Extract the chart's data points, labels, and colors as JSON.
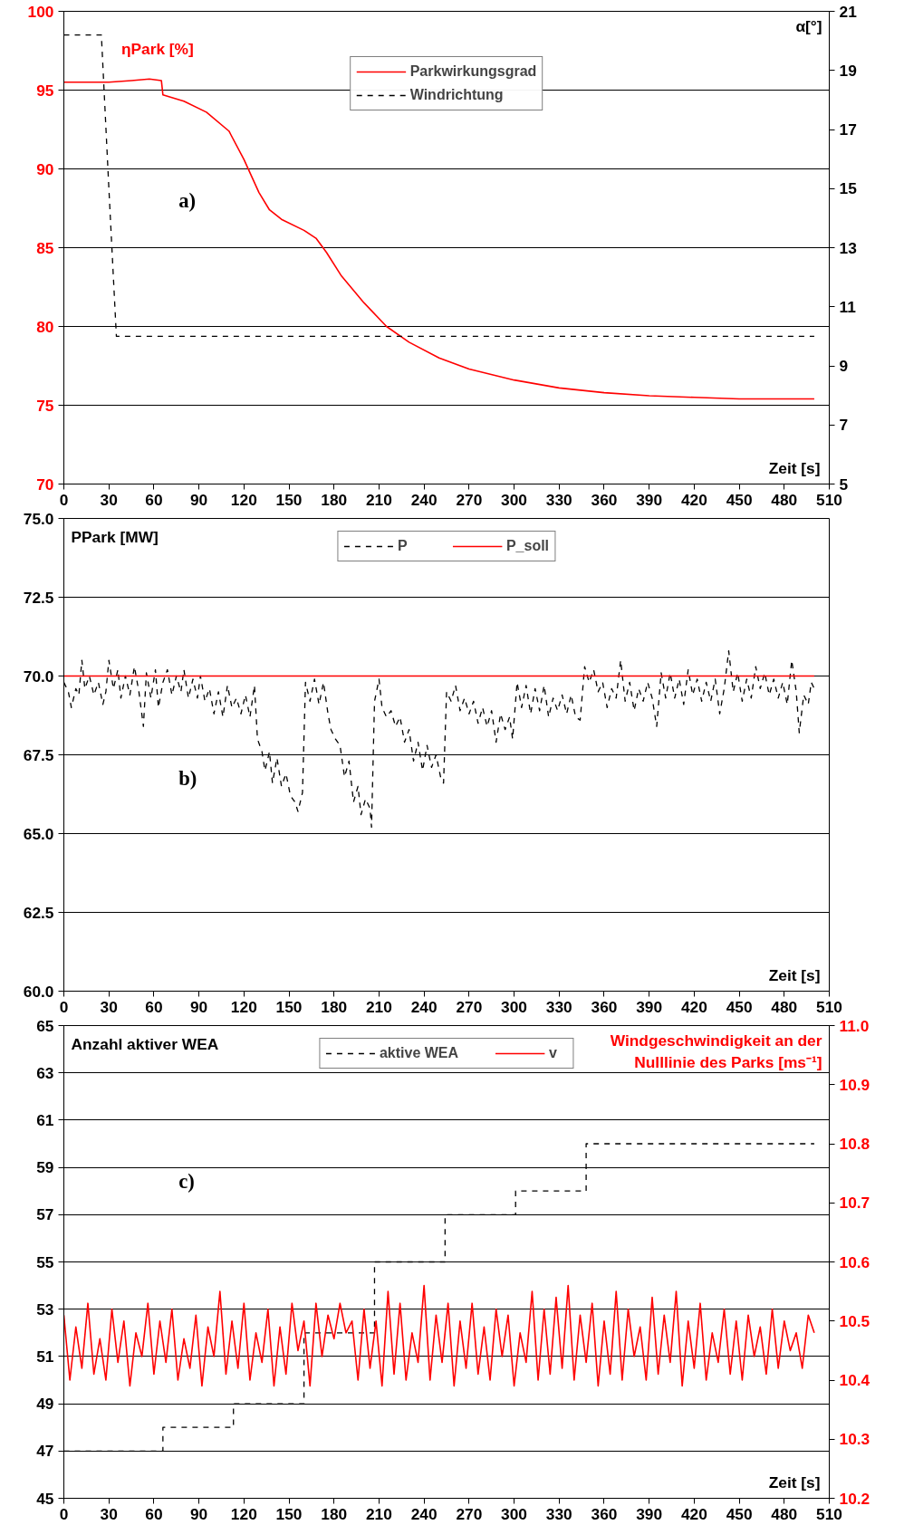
{
  "chart_data": [
    {
      "type": "line",
      "ylabel": "ηPark [%]",
      "y2label": "α[°]",
      "xlabel": "Zeit [s]",
      "annotations": [
        "a)"
      ],
      "xlim": [
        0,
        510
      ],
      "xticks": [
        0,
        30,
        60,
        90,
        120,
        150,
        180,
        210,
        240,
        270,
        300,
        330,
        360,
        390,
        420,
        450,
        480,
        510
      ],
      "ylim": [
        70,
        100
      ],
      "yticks": [
        70,
        75,
        80,
        85,
        90,
        95,
        100
      ],
      "y2lim": [
        5,
        21
      ],
      "y2ticks": [
        5,
        7,
        9,
        11,
        13,
        15,
        17,
        19,
        21
      ],
      "grid": "y",
      "legend": "top",
      "marker": "none",
      "series": [
        {
          "name": "Parkwirkungsgrad",
          "color": "#ff0000",
          "line_style": "solid",
          "x": [
            0,
            30,
            45,
            57,
            65,
            66,
            80,
            95,
            110,
            120,
            130,
            137,
            145,
            160,
            168,
            175,
            185,
            200,
            215,
            230,
            250,
            270,
            300,
            330,
            360,
            390,
            420,
            450,
            480,
            500
          ],
          "values": [
            95.5,
            95.5,
            95.6,
            95.7,
            95.6,
            94.7,
            94.3,
            93.6,
            92.4,
            90.6,
            88.5,
            87.4,
            86.8,
            86.1,
            85.6,
            84.7,
            83.2,
            81.5,
            80.0,
            79.0,
            78.0,
            77.3,
            76.6,
            76.1,
            75.8,
            75.6,
            75.5,
            75.4,
            75.4,
            75.4
          ]
        },
        {
          "name": "Windrichtung",
          "color": "#000000",
          "line_style": "dashed",
          "axis": "y2",
          "x": [
            0,
            25,
            30,
            35,
            500
          ],
          "values": [
            20.2,
            20.2,
            15,
            10,
            10
          ]
        }
      ]
    },
    {
      "type": "line",
      "ylabel": "PPark [MW]",
      "xlabel": "Zeit [s]",
      "annotations": [
        "b)"
      ],
      "xlim": [
        0,
        510
      ],
      "xticks": [
        0,
        30,
        60,
        90,
        120,
        150,
        180,
        210,
        240,
        270,
        300,
        330,
        360,
        390,
        420,
        450,
        480,
        510
      ],
      "ylim": [
        60,
        75
      ],
      "yticks": [
        {
          "value": 60,
          "label": "60.0"
        },
        62.5,
        {
          "value": 65,
          "label": "65.0"
        },
        67.5,
        {
          "value": 70,
          "label": "70.0"
        },
        72.5,
        {
          "value": 75,
          "label": "75.0"
        }
      ],
      "grid": "y",
      "legend": "top",
      "marker": "none",
      "series": [
        {
          "name": "P",
          "color": "#000000",
          "line_style": "dashed",
          "x": [
            0,
            3,
            5,
            8,
            10,
            12,
            14,
            17,
            20,
            23,
            26,
            28,
            30,
            33,
            36,
            38,
            41,
            44,
            47,
            50,
            53,
            55,
            58,
            61,
            63,
            66,
            69,
            72,
            75,
            78,
            80,
            83,
            86,
            89,
            91,
            94,
            97,
            100,
            103,
            106,
            109,
            112,
            115,
            118,
            121,
            124,
            127,
            129,
            132,
            134,
            137,
            139,
            142,
            145,
            148,
            151,
            154,
            156,
            159,
            161,
            164,
            167,
            170,
            173,
            176,
            178,
            181,
            184,
            187,
            190,
            193,
            196,
            198,
            201,
            204,
            205,
            207,
            210,
            212,
            215,
            218,
            221,
            224,
            227,
            230,
            233,
            236,
            239,
            242,
            245,
            248,
            251,
            253,
            255,
            258,
            261,
            264,
            267,
            270,
            273,
            276,
            279,
            282,
            285,
            288,
            291,
            294,
            297,
            299,
            302,
            305,
            308,
            311,
            314,
            317,
            320,
            323,
            326,
            329,
            332,
            335,
            338,
            341,
            344,
            347,
            350,
            353,
            356,
            359,
            362,
            365,
            368,
            371,
            374,
            377,
            380,
            383,
            386,
            389,
            392,
            395,
            398,
            401,
            404,
            407,
            410,
            413,
            416,
            419,
            422,
            425,
            428,
            431,
            434,
            437,
            440,
            443,
            446,
            449,
            452,
            455,
            458,
            461,
            464,
            467,
            470,
            473,
            476,
            479,
            482,
            485,
            488,
            490,
            493,
            496,
            498,
            500
          ],
          "values": [
            69.8,
            69.5,
            69.0,
            69.6,
            69.4,
            70.5,
            69.6,
            70.0,
            69.4,
            69.8,
            69.1,
            69.5,
            70.5,
            69.6,
            70.2,
            69.3,
            70.0,
            69.4,
            70.3,
            69.5,
            68.4,
            70.1,
            69.3,
            70.2,
            69.0,
            69.8,
            70.2,
            69.4,
            70.0,
            69.5,
            70.2,
            69.3,
            69.9,
            69.3,
            70.0,
            69.2,
            69.6,
            68.8,
            69.5,
            68.7,
            69.7,
            69.0,
            69.3,
            68.8,
            69.4,
            68.7,
            69.7,
            68.0,
            67.6,
            67.0,
            67.6,
            66.6,
            67.4,
            66.5,
            66.9,
            66.2,
            66.0,
            65.7,
            66.3,
            69.8,
            69.2,
            69.9,
            69.1,
            69.8,
            68.8,
            68.3,
            68.0,
            67.8,
            66.8,
            67.3,
            66.0,
            66.5,
            65.6,
            66.1,
            65.8,
            65.2,
            69.2,
            69.9,
            69.0,
            68.7,
            68.9,
            68.4,
            68.7,
            67.9,
            68.3,
            67.3,
            67.9,
            67.0,
            67.8,
            67.1,
            67.5,
            66.8,
            66.6,
            69.5,
            69.2,
            69.7,
            68.9,
            69.3,
            68.8,
            69.2,
            68.5,
            69.0,
            68.4,
            68.9,
            67.9,
            68.8,
            68.3,
            68.7,
            68.0,
            69.8,
            69.0,
            69.7,
            68.8,
            69.6,
            68.9,
            69.7,
            68.7,
            69.3,
            68.9,
            69.4,
            68.8,
            69.4,
            68.7,
            68.6,
            70.3,
            69.8,
            70.2,
            69.5,
            69.8,
            69.0,
            69.6,
            69.3,
            70.5,
            69.2,
            69.8,
            68.9,
            69.6,
            69.2,
            69.8,
            69.3,
            68.4,
            70.1,
            69.3,
            70.1,
            69.3,
            69.9,
            69.1,
            70.2,
            69.4,
            69.9,
            69.2,
            69.8,
            69.2,
            69.9,
            68.8,
            69.6,
            70.8,
            69.5,
            70.1,
            69.2,
            69.9,
            69.3,
            70.3,
            69.6,
            70.1,
            69.4,
            69.9,
            69.3,
            69.8,
            69.1,
            70.5,
            69.5,
            68.2,
            69.4,
            69.1,
            69.8,
            69.6
          ]
        },
        {
          "name": "P_soll",
          "color": "#ff0000",
          "line_style": "solid",
          "x": [
            0,
            500
          ],
          "values": [
            70,
            70
          ]
        }
      ]
    },
    {
      "type": "line",
      "ylabel": "Anzahl aktiver WEA",
      "y2label": "Windgeschwindigkeit an der\nNulllinie des Parks [ms⁻¹]",
      "xlabel": "Zeit [s]",
      "annotations": [
        "c)"
      ],
      "xlim": [
        0,
        510
      ],
      "xticks": [
        0,
        30,
        60,
        90,
        120,
        150,
        180,
        210,
        240,
        270,
        300,
        330,
        360,
        390,
        420,
        450,
        480,
        510
      ],
      "ylim": [
        45,
        65
      ],
      "yticks": [
        45,
        47,
        49,
        51,
        53,
        55,
        57,
        59,
        61,
        63,
        65
      ],
      "y2lim": [
        10.2,
        11.0
      ],
      "y2ticks": [
        10.2,
        10.3,
        10.4,
        10.5,
        10.6,
        10.7,
        10.8,
        10.9,
        {
          "value": 11.0,
          "label": "11.0"
        }
      ],
      "grid": "y",
      "legend": "top",
      "marker": "none",
      "series": [
        {
          "name": "aktive WEA",
          "type": "step",
          "color": "#000000",
          "line_style": "dashed",
          "x": [
            0,
            66,
            113,
            160,
            207,
            254,
            301,
            348,
            500
          ],
          "values": [
            47,
            48,
            49,
            52,
            55,
            57,
            58,
            60,
            60
          ]
        },
        {
          "name": "v",
          "color": "#ff0000",
          "line_style": "solid",
          "axis": "y2",
          "x": [
            0,
            4,
            8,
            12,
            16,
            20,
            24,
            28,
            32,
            36,
            40,
            44,
            48,
            52,
            56,
            60,
            64,
            68,
            72,
            76,
            80,
            84,
            88,
            92,
            96,
            100,
            104,
            108,
            112,
            116,
            120,
            124,
            128,
            132,
            136,
            140,
            144,
            148,
            152,
            156,
            160,
            164,
            168,
            172,
            176,
            180,
            184,
            188,
            192,
            196,
            200,
            204,
            208,
            212,
            216,
            220,
            224,
            228,
            232,
            236,
            240,
            244,
            248,
            252,
            256,
            260,
            264,
            268,
            272,
            276,
            280,
            284,
            288,
            292,
            296,
            300,
            304,
            308,
            312,
            316,
            320,
            324,
            328,
            332,
            336,
            340,
            344,
            348,
            352,
            356,
            360,
            364,
            368,
            372,
            376,
            380,
            384,
            388,
            392,
            396,
            400,
            404,
            408,
            412,
            416,
            420,
            424,
            428,
            432,
            436,
            440,
            444,
            448,
            452,
            456,
            460,
            464,
            468,
            472,
            476,
            480,
            484,
            488,
            492,
            496,
            500
          ],
          "values": [
            10.51,
            10.4,
            10.49,
            10.42,
            10.53,
            10.41,
            10.47,
            10.4,
            10.52,
            10.43,
            10.5,
            10.39,
            10.48,
            10.44,
            10.53,
            10.41,
            10.5,
            10.43,
            10.52,
            10.4,
            10.47,
            10.42,
            10.51,
            10.39,
            10.49,
            10.44,
            10.55,
            10.41,
            10.5,
            10.42,
            10.53,
            10.4,
            10.48,
            10.43,
            10.52,
            10.39,
            10.49,
            10.41,
            10.53,
            10.45,
            10.5,
            10.39,
            10.53,
            10.44,
            10.51,
            10.47,
            10.53,
            10.48,
            10.5,
            10.4,
            10.52,
            10.42,
            10.5,
            10.39,
            10.55,
            10.41,
            10.53,
            10.4,
            10.48,
            10.43,
            10.56,
            10.4,
            10.51,
            10.43,
            10.53,
            10.39,
            10.5,
            10.42,
            10.53,
            10.41,
            10.49,
            10.4,
            10.52,
            10.44,
            10.51,
            10.39,
            10.48,
            10.43,
            10.55,
            10.4,
            10.52,
            10.41,
            10.54,
            10.42,
            10.56,
            10.4,
            10.51,
            10.43,
            10.53,
            10.39,
            10.5,
            10.41,
            10.55,
            10.4,
            10.52,
            10.44,
            10.49,
            10.4,
            10.54,
            10.41,
            10.51,
            10.43,
            10.55,
            10.39,
            10.5,
            10.42,
            10.53,
            10.4,
            10.48,
            10.43,
            10.52,
            10.41,
            10.5,
            10.4,
            10.51,
            10.44,
            10.49,
            10.41,
            10.52,
            10.42,
            10.5,
            10.45,
            10.48,
            10.42,
            10.51,
            10.48
          ]
        }
      ]
    }
  ]
}
